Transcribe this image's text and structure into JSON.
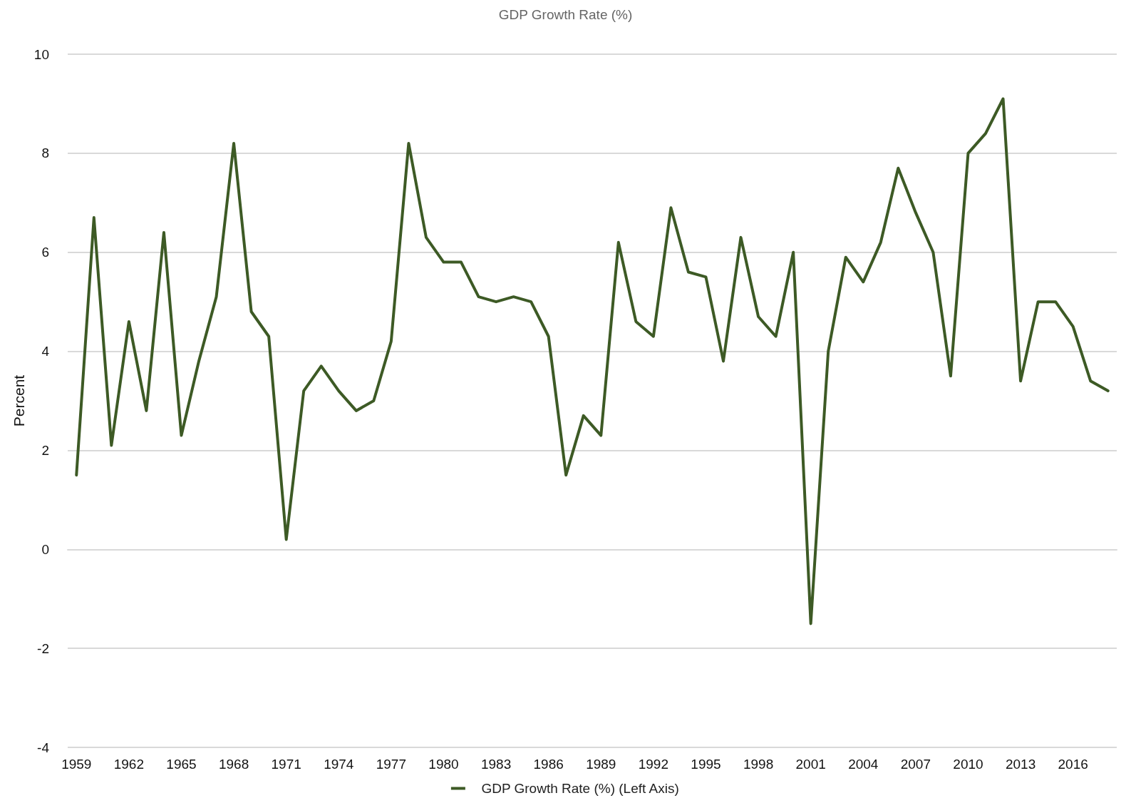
{
  "chart_data": {
    "type": "line",
    "title": "GDP Growth Rate (%)",
    "ylabel": "Percent",
    "categories": [
      "1959",
      null,
      null,
      "1962",
      null,
      null,
      "1965",
      null,
      null,
      "1968",
      null,
      null,
      "1971",
      null,
      null,
      "1974",
      null,
      null,
      "1977",
      null,
      null,
      "1980",
      null,
      null,
      "1983",
      null,
      null,
      "1986",
      null,
      null,
      "1989",
      null,
      null,
      "1992",
      null,
      null,
      "1995",
      null,
      null,
      "1998",
      null,
      null,
      "2001",
      null,
      null,
      "2004",
      null,
      null,
      "2007",
      null,
      null,
      "2010",
      null,
      null,
      "2013",
      null,
      null,
      "2016",
      null,
      null
    ],
    "series": [
      {
        "name": "GDP Growth Rate (%) (Left Axis)",
        "color": "#3d5a25",
        "values": [
          1.5,
          6.7,
          2.1,
          4.6,
          2.8,
          6.4,
          2.3,
          3.8,
          5.1,
          8.2,
          4.8,
          4.3,
          0.2,
          3.2,
          3.7,
          3.2,
          2.8,
          3.0,
          4.2,
          8.2,
          6.3,
          5.8,
          5.8,
          5.1,
          5.0,
          5.1,
          5.0,
          4.3,
          1.5,
          2.7,
          2.3,
          6.2,
          4.6,
          4.3,
          6.9,
          5.6,
          5.5,
          3.8,
          6.3,
          4.7,
          4.3,
          6.0,
          -1.5,
          4.0,
          5.9,
          5.4,
          6.2,
          7.7,
          6.8,
          6.0,
          3.5,
          8.0,
          8.4,
          9.1,
          3.4,
          5.0,
          5.0,
          4.5,
          3.4,
          3.2
        ]
      }
    ],
    "ylim": [
      -4,
      10
    ],
    "yticks": [
      -4,
      -2,
      0,
      2,
      4,
      6,
      8,
      10
    ],
    "grid": "y",
    "legend": "bottom",
    "marker": "none",
    "line_style": "solid"
  }
}
